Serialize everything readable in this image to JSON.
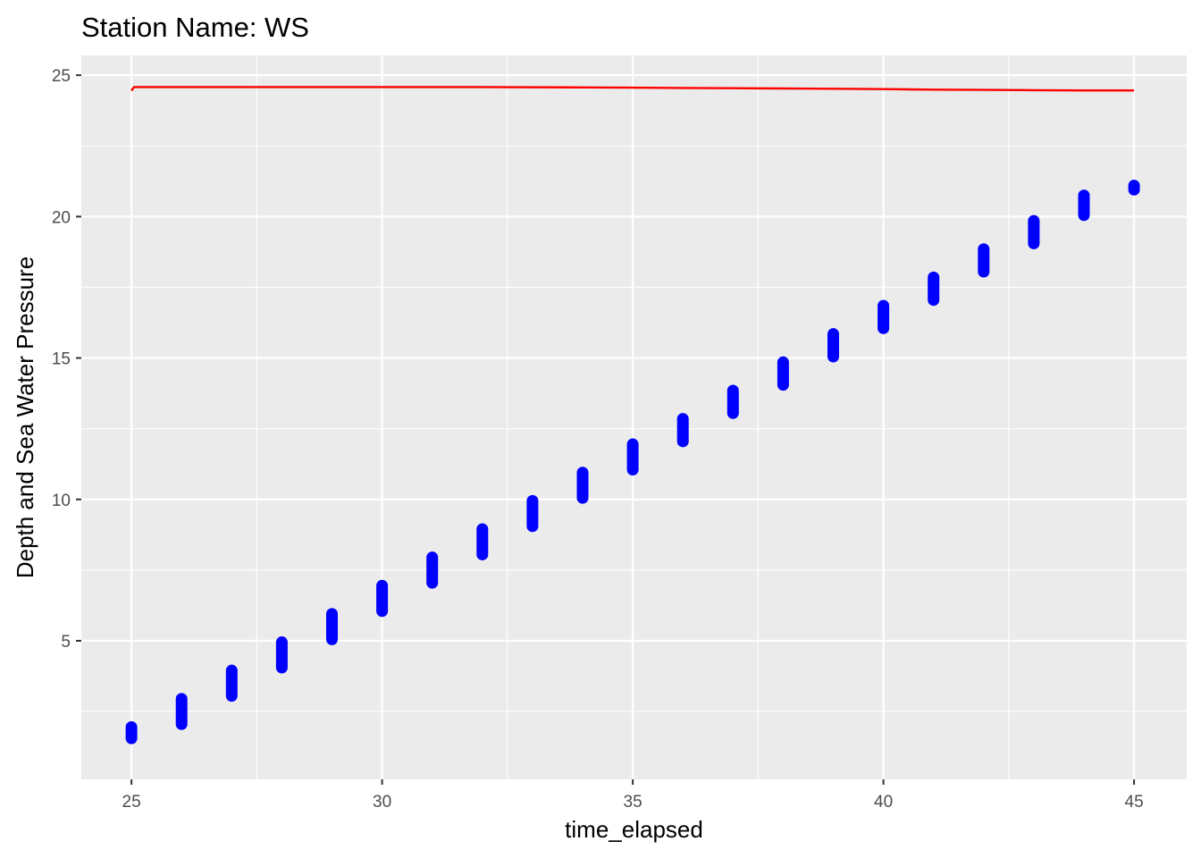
{
  "chart_data": {
    "type": "scatter",
    "title": "Station Name: WS",
    "xlabel": "time_elapsed",
    "ylabel": "Depth and Sea Water Pressure",
    "xlim": [
      24,
      46.05
    ],
    "ylim": [
      0.1,
      25.7
    ],
    "x_ticks": [
      25,
      30,
      35,
      40,
      45
    ],
    "y_ticks": [
      5,
      10,
      15,
      20,
      25
    ],
    "x_tick_labels": [
      "25",
      "30",
      "35",
      "40",
      "45"
    ],
    "y_tick_labels": [
      "5",
      "10",
      "15",
      "20",
      "25"
    ],
    "grid": true,
    "colors": {
      "panel": "#ebebeb",
      "grid": "#ffffff",
      "pressure": "#ff0000",
      "depth": "#0000ff"
    },
    "series": [
      {
        "type": "line",
        "color": "#ff0000",
        "x": [
          25,
          25.05,
          26,
          28,
          30,
          32,
          34,
          35,
          36,
          37,
          38,
          39,
          40,
          41,
          42,
          43,
          44,
          45
        ],
        "y": [
          24.45,
          24.58,
          24.58,
          24.58,
          24.58,
          24.58,
          24.57,
          24.56,
          24.55,
          24.54,
          24.53,
          24.52,
          24.51,
          24.49,
          24.48,
          24.47,
          24.46,
          24.46
        ]
      },
      {
        "type": "point-range",
        "color": "#0000ff",
        "x": [
          25,
          26,
          27,
          28,
          29,
          30,
          31,
          32,
          33,
          34,
          35,
          36,
          37,
          38,
          39,
          40,
          41,
          42,
          43,
          44,
          45
        ],
        "y_min": [
          1.55,
          2.05,
          3.05,
          4.05,
          5.05,
          6.05,
          7.05,
          8.05,
          9.05,
          10.05,
          11.05,
          12.05,
          13.05,
          14.05,
          15.05,
          16.05,
          17.05,
          18.05,
          19.05,
          20.05,
          20.95
        ],
        "y_max": [
          1.95,
          2.95,
          3.95,
          4.95,
          5.95,
          6.95,
          7.95,
          8.95,
          9.95,
          10.95,
          11.95,
          12.85,
          13.85,
          14.85,
          15.85,
          16.85,
          17.85,
          18.85,
          19.85,
          20.75,
          21.1
        ]
      }
    ]
  }
}
